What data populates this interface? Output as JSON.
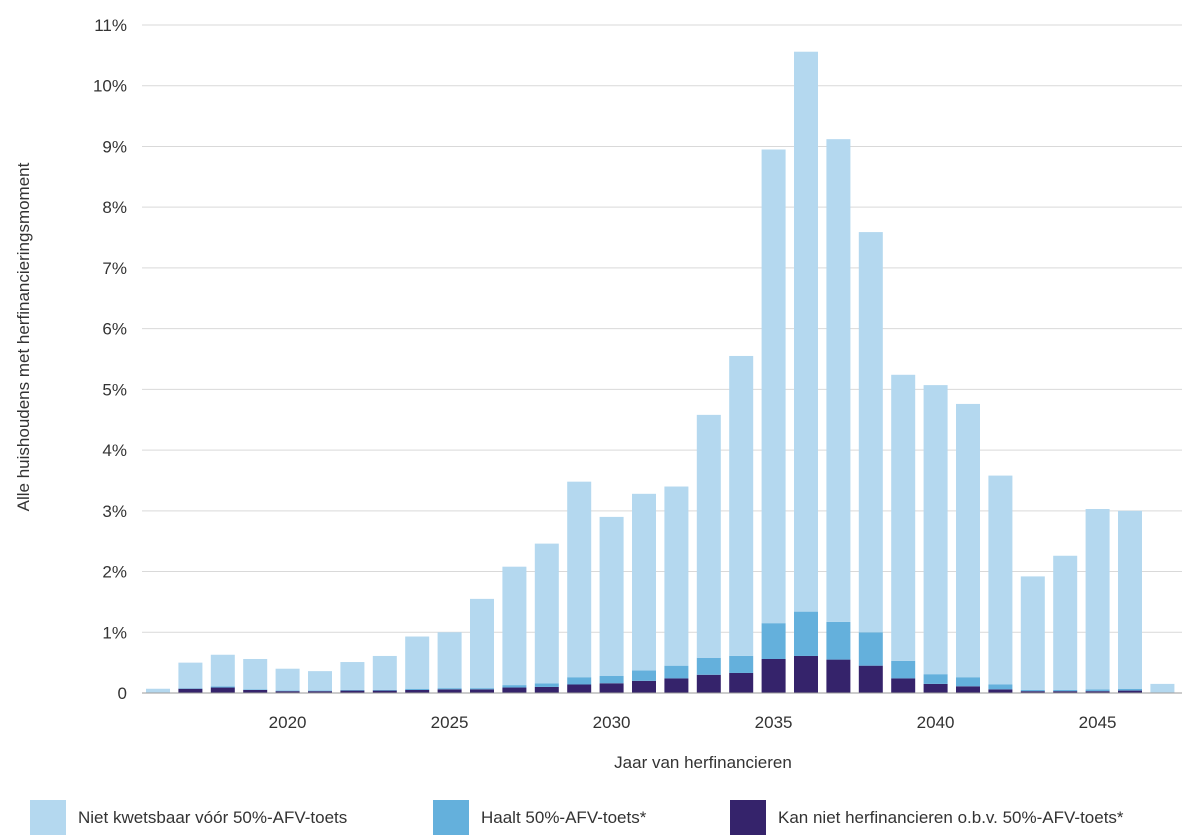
{
  "chart_data": {
    "type": "bar",
    "stacked": true,
    "x": [
      2016,
      2017,
      2018,
      2019,
      2020,
      2021,
      2022,
      2023,
      2024,
      2025,
      2026,
      2027,
      2028,
      2029,
      2030,
      2031,
      2032,
      2033,
      2034,
      2035,
      2036,
      2037,
      2038,
      2039,
      2040,
      2041,
      2042,
      2043,
      2044,
      2045,
      2046,
      2047
    ],
    "xticks": [
      2020,
      2025,
      2030,
      2035,
      2040,
      2045
    ],
    "xtick_labels": [
      "2020",
      "2025",
      "2030",
      "2035",
      "2040",
      "2045"
    ],
    "yticks": [
      0,
      1,
      2,
      3,
      4,
      5,
      6,
      7,
      8,
      9,
      10,
      11
    ],
    "ytick_labels": [
      "0",
      "1%",
      "2%",
      "3%",
      "4%",
      "5%",
      "6%",
      "7%",
      "8%",
      "9%",
      "10%",
      "11%"
    ],
    "ylim": [
      0,
      11
    ],
    "xlabel": "Jaar van herfinancieren",
    "ylabel": "Alle huishoudens met herfinancieringsmoment",
    "grid": true,
    "legend_position": "bottom",
    "series": [
      {
        "name": "Kan niet herfinancieren o.b.v. 50%-AFV-toets*",
        "color": "#35236b",
        "values": [
          0,
          0.07,
          0.09,
          0.05,
          0.03,
          0.03,
          0.04,
          0.04,
          0.05,
          0.06,
          0.06,
          0.09,
          0.1,
          0.14,
          0.16,
          0.2,
          0.24,
          0.3,
          0.33,
          0.56,
          0.61,
          0.55,
          0.45,
          0.24,
          0.15,
          0.11,
          0.06,
          0.03,
          0.03,
          0.03,
          0.04,
          0
        ]
      },
      {
        "name": "Haalt 50%-AFV-toets*",
        "color": "#64b0dc",
        "values": [
          0.01,
          0.01,
          0.02,
          0.01,
          0.01,
          0.01,
          0.01,
          0.01,
          0.02,
          0.02,
          0.02,
          0.04,
          0.06,
          0.12,
          0.12,
          0.17,
          0.21,
          0.28,
          0.28,
          0.59,
          0.73,
          0.62,
          0.55,
          0.29,
          0.16,
          0.15,
          0.08,
          0.02,
          0.02,
          0.03,
          0.03,
          0.01
        ]
      },
      {
        "name": "Niet kwetsbaar vóór 50%-AFV-toets",
        "color": "#b4d8ef",
        "values": [
          0.06,
          0.42,
          0.52,
          0.5,
          0.36,
          0.32,
          0.46,
          0.56,
          0.86,
          0.92,
          1.47,
          1.95,
          2.3,
          3.22,
          2.62,
          2.91,
          2.95,
          4.0,
          4.94,
          7.8,
          9.22,
          7.95,
          6.59,
          4.71,
          4.76,
          4.5,
          3.44,
          1.87,
          2.21,
          2.97,
          2.93,
          0.14
        ]
      }
    ]
  },
  "legend": {
    "items": [
      {
        "label": "Niet kwetsbaar vóór 50%-AFV-toets",
        "color": "#b4d8ef"
      },
      {
        "label": "Haalt 50%-AFV-toets*",
        "color": "#64b0dc"
      },
      {
        "label": "Kan niet herfinancieren o.b.v. 50%-AFV-toets*",
        "color": "#35236b"
      }
    ]
  }
}
